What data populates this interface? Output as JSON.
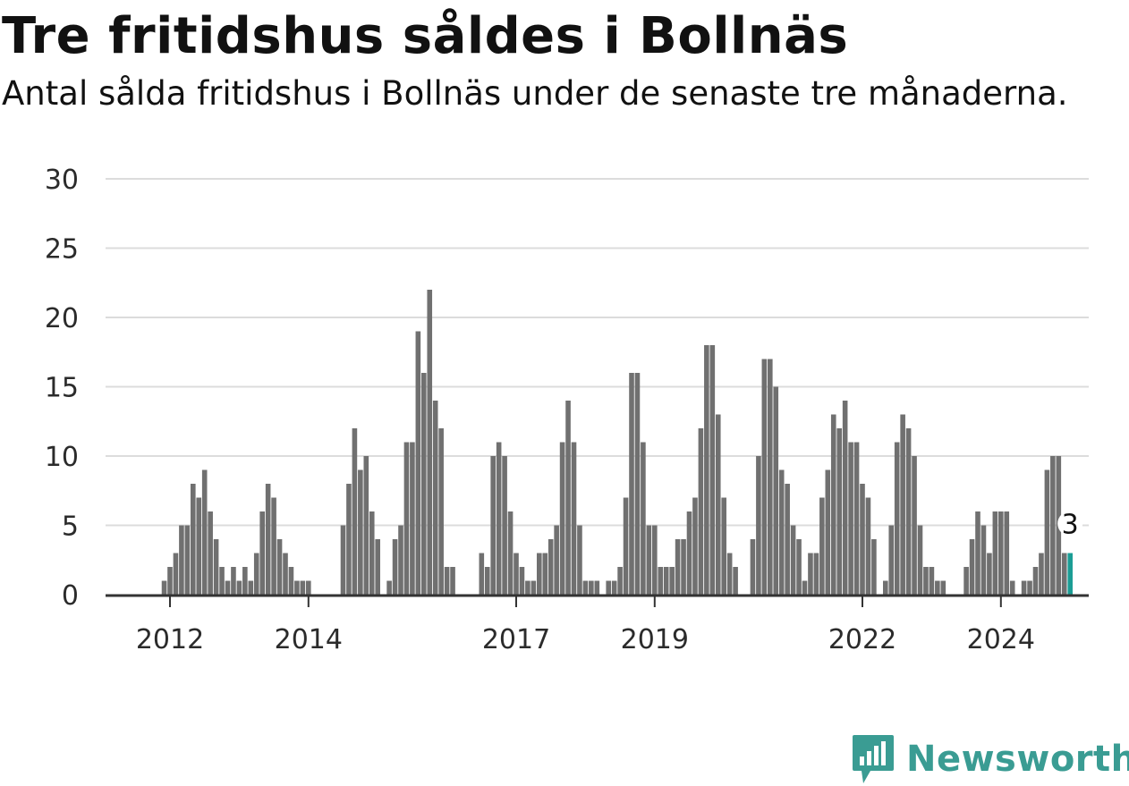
{
  "title": "Tre fritidshus såldes i Bollnäs",
  "subtitle": "Antal sålda fritidshus i Bollnäs under de senaste tre månaderna.",
  "brand": {
    "name": "Newsworthy",
    "color": "#3a9c93"
  },
  "colors": {
    "bar": "#707070",
    "highlight": "#1b9d95",
    "grid": "#dcdcdc",
    "axis": "#333333"
  },
  "chart_data": {
    "type": "bar",
    "start_month": "2011-05",
    "frequency": "monthly",
    "ylim": [
      0,
      30
    ],
    "yticks": [
      0,
      5,
      10,
      15,
      20,
      25,
      30
    ],
    "xticks": [
      "2012",
      "2014",
      "2017",
      "2019",
      "2022",
      "2024"
    ],
    "highlight_label": "3",
    "values": [
      0,
      0,
      0,
      0,
      0,
      0,
      0,
      1,
      2,
      3,
      5,
      5,
      8,
      7,
      9,
      6,
      4,
      2,
      1,
      2,
      1,
      2,
      1,
      3,
      6,
      8,
      7,
      4,
      3,
      2,
      1,
      1,
      1,
      0,
      0,
      0,
      0,
      0,
      5,
      8,
      12,
      9,
      10,
      6,
      4,
      0,
      1,
      4,
      5,
      11,
      11,
      19,
      16,
      22,
      14,
      12,
      2,
      2,
      0,
      0,
      0,
      0,
      3,
      2,
      10,
      11,
      10,
      6,
      3,
      2,
      1,
      1,
      3,
      3,
      4,
      5,
      11,
      14,
      11,
      5,
      1,
      1,
      1,
      0,
      1,
      1,
      2,
      7,
      16,
      16,
      11,
      5,
      5,
      2,
      2,
      2,
      4,
      4,
      6,
      7,
      12,
      18,
      18,
      13,
      7,
      3,
      2,
      0,
      0,
      4,
      10,
      17,
      17,
      15,
      9,
      8,
      5,
      4,
      1,
      3,
      3,
      7,
      9,
      13,
      12,
      14,
      11,
      11,
      8,
      7,
      4,
      0,
      1,
      5,
      11,
      13,
      12,
      10,
      5,
      2,
      2,
      1,
      1,
      0,
      0,
      0,
      2,
      4,
      6,
      5,
      3,
      6,
      6,
      6,
      1,
      0,
      1,
      1,
      2,
      3,
      9,
      10,
      10,
      3,
      3
    ]
  }
}
